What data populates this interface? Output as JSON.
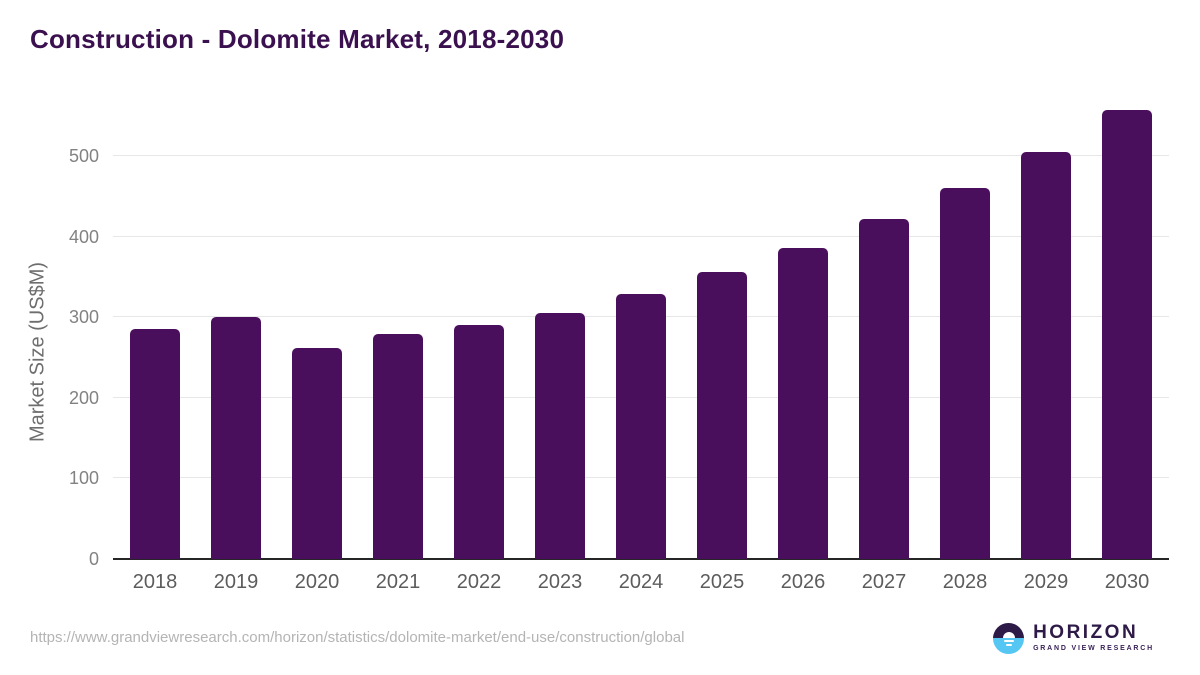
{
  "chart_data": {
    "type": "bar",
    "title": "Construction - Dolomite Market, 2018-2030",
    "categories": [
      "2018",
      "2019",
      "2020",
      "2021",
      "2022",
      "2023",
      "2024",
      "2025",
      "2026",
      "2027",
      "2028",
      "2029",
      "2030"
    ],
    "values": [
      286,
      300,
      262,
      280,
      290,
      305,
      329,
      356,
      386,
      422,
      461,
      506,
      557
    ],
    "xlabel": "",
    "ylabel": "Market Size (US$M)",
    "ylim": [
      0,
      570
    ],
    "yticks": [
      0,
      100,
      200,
      300,
      400,
      500
    ],
    "bar_color": "#4A0F5C",
    "grid": true,
    "legend": "none"
  },
  "footer": {
    "source_url": "https://www.grandviewresearch.com/horizon/statistics/dolomite-market/end-use/construction/global",
    "logo": {
      "brand": "HORIZON",
      "tagline": "GRAND VIEW RESEARCH",
      "purple": "#2E1A47",
      "blue": "#56C6F2"
    }
  },
  "colors": {
    "title": "#3A104F",
    "gridline": "#E7E7E7",
    "axis_line": "#262626"
  }
}
